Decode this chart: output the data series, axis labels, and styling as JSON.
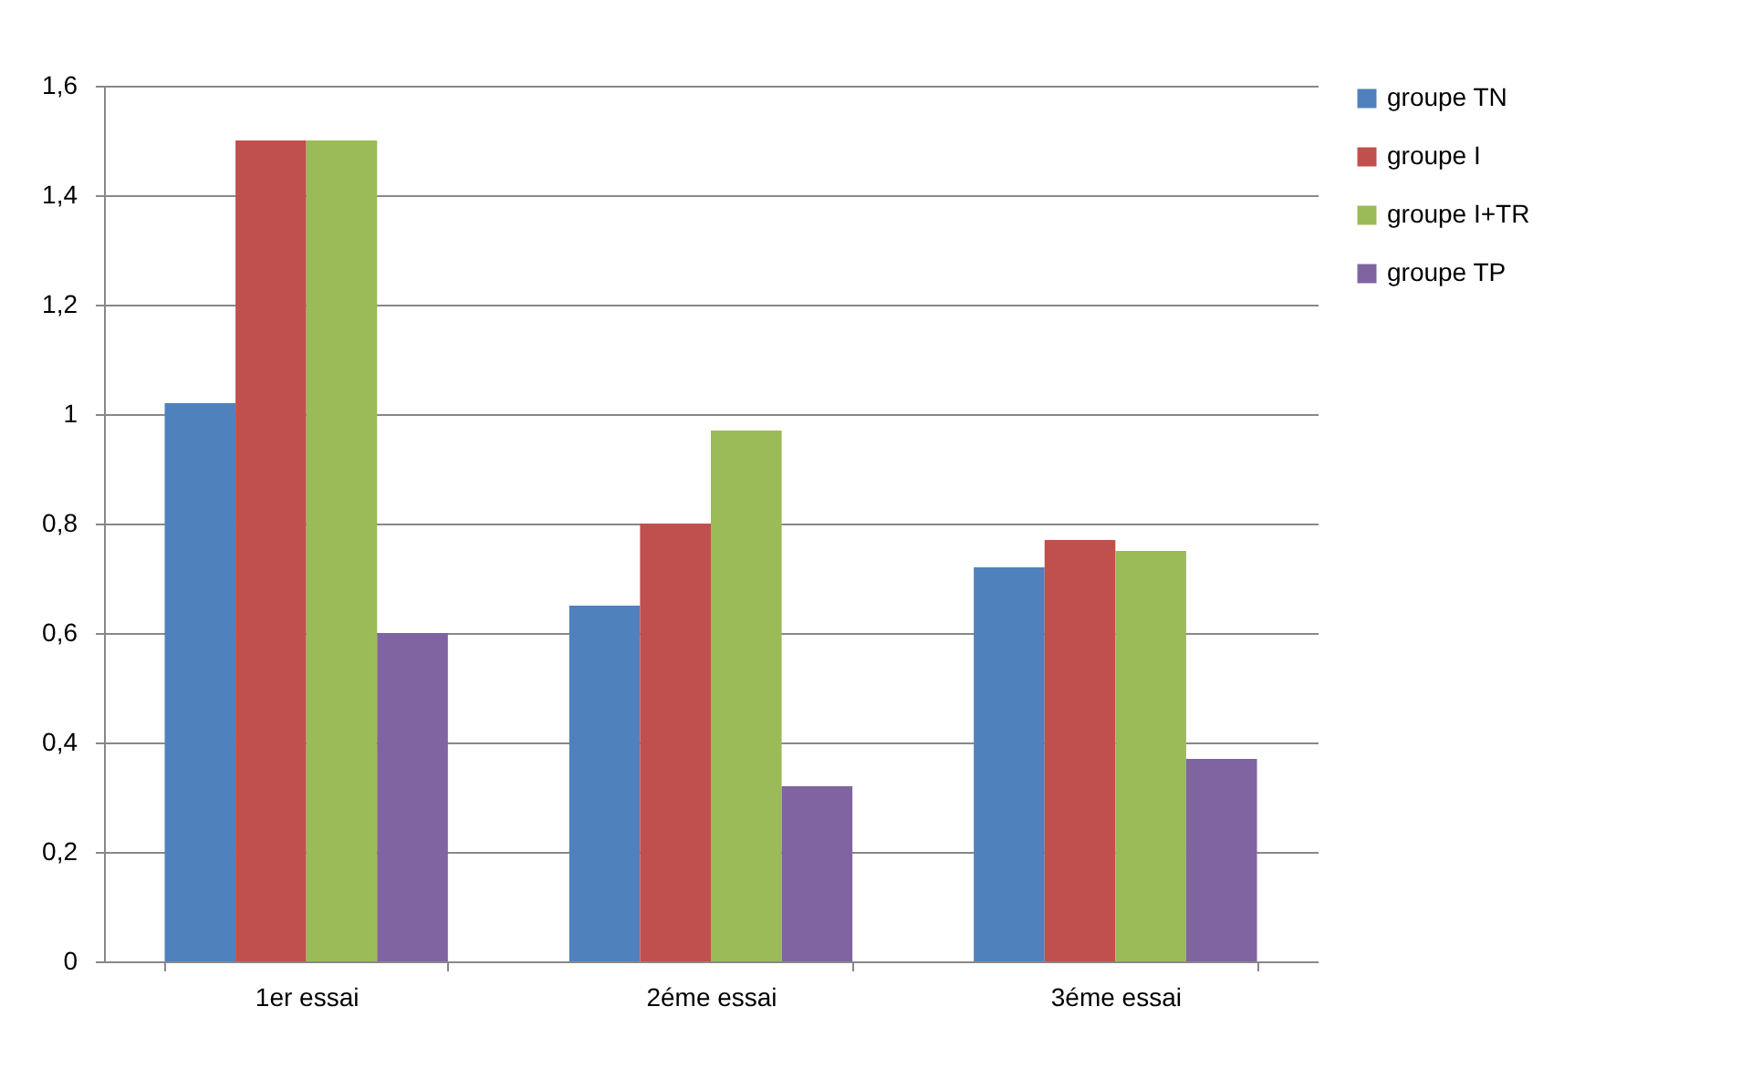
{
  "chart_data": {
    "type": "bar",
    "categories": [
      "1er essai",
      "2éme essai",
      "3éme essai"
    ],
    "series": [
      {
        "name": "groupe TN",
        "color": "#4f81bd",
        "values": [
          1.02,
          0.65,
          0.72
        ]
      },
      {
        "name": "groupe I",
        "color": "#c0504d",
        "values": [
          1.5,
          0.8,
          0.77
        ]
      },
      {
        "name": "groupe I+TR",
        "color": "#9bbb59",
        "values": [
          1.5,
          0.97,
          0.75
        ]
      },
      {
        "name": "groupe TP",
        "color": "#8064a2",
        "values": [
          0.6,
          0.32,
          0.37
        ]
      }
    ],
    "ylim": [
      0,
      1.6
    ],
    "yticks": [
      0,
      {
        "value": 0.2,
        "label": "0,2"
      },
      {
        "value": 0.4,
        "label": "0,4"
      },
      {
        "value": 0.6,
        "label": "0,6"
      },
      {
        "value": 0.8,
        "label": "0,8"
      },
      1,
      {
        "value": 1.2,
        "label": "1,2"
      },
      {
        "value": 1.4,
        "label": "1,4"
      },
      {
        "value": 1.6,
        "label": "1,6"
      }
    ],
    "grid": "y",
    "legend": "right"
  }
}
